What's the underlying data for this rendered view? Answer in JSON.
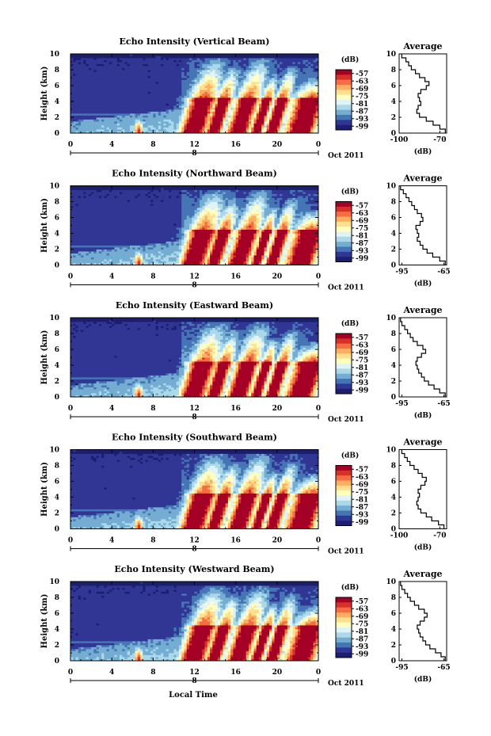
{
  "figure": {
    "xlabel": "Local Time",
    "date_label": "Oct 2011",
    "colorbar_unit": "(dB)",
    "colorbar_ticks": [
      "-57",
      "-63",
      "-69",
      "-75",
      "-81",
      "-87",
      "-93",
      "-99"
    ],
    "colormap": [
      "#a50026",
      "#d73027",
      "#f46d43",
      "#fdae61",
      "#fee090",
      "#ffffbf",
      "#e0f3f8",
      "#abd9e9",
      "#74add1",
      "#4575b4",
      "#313695",
      "#1b1f6e"
    ]
  },
  "chart_data": [
    {
      "type": "heatmap",
      "title": "Echo Intensity (Vertical Beam)",
      "ylabel": "Height (km)",
      "xlabel": "Local Time",
      "x_ticks": [
        "0",
        "4",
        "8",
        "12",
        "16",
        "20",
        "0"
      ],
      "y_ticks": [
        "0",
        "2",
        "4",
        "6",
        "8",
        "10"
      ],
      "xlim": [
        0,
        24
      ],
      "ylim": [
        0,
        10
      ],
      "date_label": "Oct 2011",
      "day_marker": "8",
      "colorbar": {
        "label": "(dB)",
        "ticks": [
          -57,
          -63,
          -69,
          -75,
          -81,
          -87,
          -93,
          -99
        ]
      },
      "average_profile": {
        "title": "Average",
        "x_ticks": [
          "-100",
          "-70"
        ],
        "xlim": [
          -100,
          -65
        ],
        "xlabel": "(dB)",
        "heights": [
          0,
          0.5,
          1,
          1.5,
          2,
          2.5,
          3,
          3.5,
          4,
          4.5,
          5,
          5.5,
          6,
          6.5,
          7,
          7.5,
          8,
          8.5,
          9,
          9.5
        ],
        "values": [
          -66,
          -70,
          -75,
          -80,
          -85,
          -87,
          -86,
          -84,
          -85,
          -86,
          -84,
          -80,
          -78,
          -81,
          -85,
          -88,
          -91,
          -93,
          -95,
          -98
        ]
      }
    },
    {
      "type": "heatmap",
      "title": "Echo Intensity (Northward Beam)",
      "ylabel": "Height (km)",
      "xlabel": "Local Time",
      "x_ticks": [
        "0",
        "4",
        "8",
        "12",
        "16",
        "20",
        "0"
      ],
      "y_ticks": [
        "0",
        "2",
        "4",
        "6",
        "8",
        "10"
      ],
      "xlim": [
        0,
        24
      ],
      "ylim": [
        0,
        10
      ],
      "date_label": "Oct 2011",
      "day_marker": "8",
      "colorbar": {
        "label": "(dB)",
        "ticks": [
          -57,
          -63,
          -69,
          -75,
          -81,
          -87,
          -93,
          -99
        ]
      },
      "average_profile": {
        "title": "Average",
        "x_ticks": [
          "-95",
          "-65"
        ],
        "xlim": [
          -97,
          -63
        ],
        "xlabel": "(dB)",
        "heights": [
          0,
          0.5,
          1,
          1.5,
          2,
          2.5,
          3,
          3.5,
          4,
          4.5,
          5,
          5.5,
          6,
          6.5,
          7,
          7.5,
          8,
          8.5,
          9,
          9.5
        ],
        "values": [
          -64,
          -68,
          -73,
          -77,
          -80,
          -82,
          -84,
          -83,
          -84,
          -85,
          -82,
          -80,
          -81,
          -84,
          -86,
          -88,
          -90,
          -92,
          -94,
          -96
        ]
      }
    },
    {
      "type": "heatmap",
      "title": "Echo Intensity (Eastward Beam)",
      "ylabel": "Height (km)",
      "xlabel": "Local Time",
      "x_ticks": [
        "0",
        "4",
        "8",
        "12",
        "16",
        "20",
        "0"
      ],
      "y_ticks": [
        "0",
        "2",
        "4",
        "6",
        "8",
        "10"
      ],
      "xlim": [
        0,
        24
      ],
      "ylim": [
        0,
        10
      ],
      "date_label": "Oct 2011",
      "day_marker": "8",
      "colorbar": {
        "label": "(dB)",
        "ticks": [
          -57,
          -63,
          -69,
          -75,
          -81,
          -87,
          -93,
          -99
        ]
      },
      "average_profile": {
        "title": "Average",
        "x_ticks": [
          "-95",
          "-65"
        ],
        "xlim": [
          -97,
          -63
        ],
        "xlabel": "(dB)",
        "heights": [
          0,
          0.5,
          1,
          1.5,
          2,
          2.5,
          3,
          3.5,
          4,
          4.5,
          5,
          5.5,
          6,
          6.5,
          7,
          7.5,
          8,
          8.5,
          9,
          9.5
        ],
        "values": [
          -64,
          -68,
          -72,
          -76,
          -79,
          -81,
          -83,
          -84,
          -85,
          -84,
          -81,
          -78,
          -80,
          -84,
          -87,
          -89,
          -91,
          -93,
          -95,
          -96
        ]
      }
    },
    {
      "type": "heatmap",
      "title": "Echo Intensity (Southward Beam)",
      "ylabel": "Height (km)",
      "xlabel": "Local Time",
      "x_ticks": [
        "0",
        "4",
        "8",
        "12",
        "16",
        "20",
        "0"
      ],
      "y_ticks": [
        "0",
        "2",
        "4",
        "6",
        "8",
        "10"
      ],
      "xlim": [
        0,
        24
      ],
      "ylim": [
        0,
        10
      ],
      "date_label": "Oct 2011",
      "day_marker": "8",
      "colorbar": {
        "label": "(dB)",
        "ticks": [
          -57,
          -63,
          -69,
          -75,
          -81,
          -87,
          -93,
          -99
        ]
      },
      "average_profile": {
        "title": "Average",
        "x_ticks": [
          "-100",
          "-70"
        ],
        "xlim": [
          -100,
          -65
        ],
        "xlabel": "(dB)",
        "heights": [
          0,
          0.5,
          1,
          1.5,
          2,
          2.5,
          3,
          3.5,
          4,
          4.5,
          5,
          5.5,
          6,
          6.5,
          7,
          7.5,
          8,
          8.5,
          9,
          9.5
        ],
        "values": [
          -67,
          -71,
          -76,
          -80,
          -84,
          -86,
          -87,
          -86,
          -85,
          -86,
          -84,
          -81,
          -80,
          -83,
          -86,
          -89,
          -92,
          -94,
          -96,
          -98
        ]
      }
    },
    {
      "type": "heatmap",
      "title": "Echo Intensity (Westward Beam)",
      "ylabel": "Height (km)",
      "xlabel": "Local Time",
      "x_ticks": [
        "0",
        "4",
        "8",
        "12",
        "16",
        "20",
        "0"
      ],
      "y_ticks": [
        "0",
        "2",
        "4",
        "6",
        "8",
        "10"
      ],
      "xlim": [
        0,
        24
      ],
      "ylim": [
        0,
        10
      ],
      "date_label": "Oct 2011",
      "day_marker": "8",
      "colorbar": {
        "label": "(dB)",
        "ticks": [
          -57,
          -63,
          -69,
          -75,
          -81,
          -87,
          -93,
          -99
        ]
      },
      "average_profile": {
        "title": "Average",
        "x_ticks": [
          "-95",
          "-65"
        ],
        "xlim": [
          -97,
          -63
        ],
        "xlabel": "(dB)",
        "heights": [
          0,
          0.5,
          1,
          1.5,
          2,
          2.5,
          3,
          3.5,
          4,
          4.5,
          5,
          5.5,
          6,
          6.5,
          7,
          7.5,
          8,
          8.5,
          9,
          9.5
        ],
        "values": [
          -64,
          -67,
          -71,
          -75,
          -78,
          -80,
          -82,
          -83,
          -84,
          -82,
          -79,
          -77,
          -79,
          -83,
          -86,
          -89,
          -91,
          -93,
          -95,
          -96
        ]
      }
    }
  ]
}
